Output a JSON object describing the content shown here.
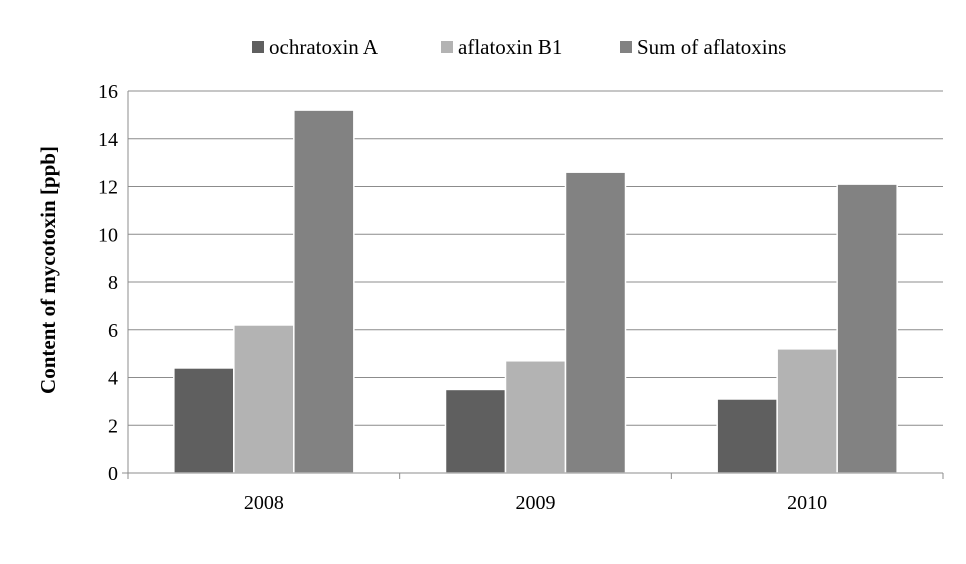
{
  "chart_data": {
    "type": "bar",
    "title": "",
    "xlabel": "",
    "ylabel": "Content of mycotoxin [ppb]",
    "categories": [
      "2008",
      "2009",
      "2010"
    ],
    "series": [
      {
        "name": "ochratoxin A",
        "color": "#5f5f5f",
        "values": [
          4.4,
          3.5,
          3.1
        ]
      },
      {
        "name": "aflatoxin B1",
        "color": "#b3b3b3",
        "values": [
          6.2,
          4.7,
          5.2
        ]
      },
      {
        "name": "Sum of aflatoxins",
        "color": "#828282",
        "values": [
          15.2,
          12.6,
          12.1
        ]
      }
    ],
    "ylim": [
      0,
      16
    ],
    "yticks": [
      "0",
      "2",
      "4",
      "6",
      "8",
      "10",
      "12",
      "14",
      "16"
    ],
    "grid": true,
    "legend_position": "top"
  }
}
